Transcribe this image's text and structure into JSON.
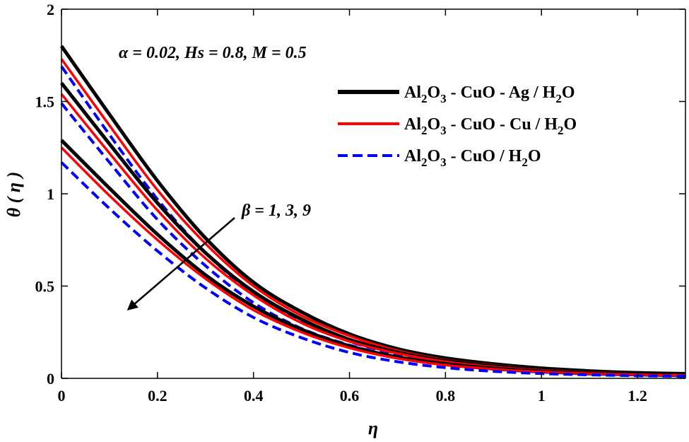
{
  "chart_data": {
    "type": "line",
    "xlabel": "η",
    "ylabel": "θ ( η )",
    "xlim": [
      0,
      1.3
    ],
    "ylim": [
      0,
      2
    ],
    "xticks": [
      0,
      0.2,
      0.4,
      0.6,
      0.8,
      1,
      1.2
    ],
    "yticks": [
      0,
      0.5,
      1,
      1.5,
      2
    ],
    "xtick_labels": [
      "0",
      "0.2",
      "0.4",
      "0.6",
      "0.8",
      "1",
      "1.2"
    ],
    "ytick_labels": [
      "0",
      "0.5",
      "1",
      "1.5",
      "2"
    ],
    "grid": false,
    "legend_position": "top-right",
    "annotation_params": "α = 0.02, Hs = 0.8, M = 0.5",
    "annotation_beta": "β = 1, 3, 9",
    "legend": [
      {
        "parts": [
          "Al",
          "2",
          "O",
          "3",
          " - CuO - Ag / H",
          "2",
          "O"
        ],
        "color": "#000000",
        "dash": "solid"
      },
      {
        "parts": [
          "Al",
          "2",
          "O",
          "3",
          " - CuO - Cu / H",
          "2",
          "O"
        ],
        "color": "#ff0000",
        "dash": "solid"
      },
      {
        "parts": [
          "Al",
          "2",
          "O",
          "3",
          " - CuO / H",
          "2",
          "O"
        ],
        "color": "#0000ff",
        "dash": "dashed"
      }
    ],
    "series": [
      {
        "fluid": "Al2O3-CuO-Ag/H2O",
        "beta": 1,
        "color": "#000000",
        "dash": "solid",
        "x": [
          0,
          0.1,
          0.2,
          0.3,
          0.4,
          0.5,
          0.6,
          0.7,
          0.8,
          0.9,
          1.0,
          1.1,
          1.2,
          1.3
        ],
        "y": [
          1.8,
          1.43,
          1.07,
          0.76,
          0.52,
          0.36,
          0.24,
          0.16,
          0.11,
          0.078,
          0.055,
          0.04,
          0.03,
          0.025
        ]
      },
      {
        "fluid": "Al2O3-CuO-Cu/H2O",
        "beta": 1,
        "color": "#ff0000",
        "dash": "solid",
        "x": [
          0,
          0.1,
          0.2,
          0.3,
          0.4,
          0.5,
          0.6,
          0.7,
          0.8,
          0.9,
          1.0,
          1.1,
          1.2,
          1.3
        ],
        "y": [
          1.73,
          1.37,
          1.02,
          0.73,
          0.5,
          0.34,
          0.23,
          0.15,
          0.1,
          0.072,
          0.05,
          0.036,
          0.027,
          0.022
        ]
      },
      {
        "fluid": "Al2O3-CuO/H2O",
        "beta": 1,
        "color": "#0000ff",
        "dash": "dashed",
        "x": [
          0,
          0.1,
          0.2,
          0.3,
          0.4,
          0.5,
          0.6,
          0.7,
          0.8,
          0.9,
          1.0,
          1.1,
          1.2,
          1.3
        ],
        "y": [
          1.69,
          1.32,
          0.97,
          0.68,
          0.46,
          0.31,
          0.2,
          0.13,
          0.085,
          0.057,
          0.039,
          0.028,
          0.021,
          0.017
        ]
      },
      {
        "fluid": "Al2O3-CuO-Ag/H2O",
        "beta": 3,
        "color": "#000000",
        "dash": "solid",
        "x": [
          0,
          0.1,
          0.2,
          0.3,
          0.4,
          0.5,
          0.6,
          0.7,
          0.8,
          0.9,
          1.0,
          1.1,
          1.2,
          1.3
        ],
        "y": [
          1.6,
          1.27,
          0.95,
          0.68,
          0.47,
          0.32,
          0.21,
          0.14,
          0.095,
          0.067,
          0.047,
          0.035,
          0.027,
          0.022
        ]
      },
      {
        "fluid": "Al2O3-CuO-Cu/H2O",
        "beta": 3,
        "color": "#ff0000",
        "dash": "solid",
        "x": [
          0,
          0.1,
          0.2,
          0.3,
          0.4,
          0.5,
          0.6,
          0.7,
          0.8,
          0.9,
          1.0,
          1.1,
          1.2,
          1.3
        ],
        "y": [
          1.54,
          1.22,
          0.91,
          0.65,
          0.45,
          0.3,
          0.2,
          0.135,
          0.09,
          0.062,
          0.044,
          0.032,
          0.025,
          0.02
        ]
      },
      {
        "fluid": "Al2O3-CuO/H2O",
        "beta": 3,
        "color": "#0000ff",
        "dash": "dashed",
        "x": [
          0,
          0.1,
          0.2,
          0.3,
          0.4,
          0.5,
          0.6,
          0.7,
          0.8,
          0.9,
          1.0,
          1.1,
          1.2,
          1.3
        ],
        "y": [
          1.49,
          1.17,
          0.86,
          0.61,
          0.41,
          0.27,
          0.18,
          0.115,
          0.075,
          0.05,
          0.034,
          0.024,
          0.018,
          0.014
        ]
      },
      {
        "fluid": "Al2O3-CuO-Ag/H2O",
        "beta": 9,
        "color": "#000000",
        "dash": "solid",
        "x": [
          0,
          0.1,
          0.2,
          0.3,
          0.4,
          0.5,
          0.6,
          0.7,
          0.8,
          0.9,
          1.0,
          1.1,
          1.2,
          1.3
        ],
        "y": [
          1.29,
          1.03,
          0.78,
          0.56,
          0.39,
          0.265,
          0.175,
          0.115,
          0.078,
          0.054,
          0.038,
          0.028,
          0.022,
          0.018
        ]
      },
      {
        "fluid": "Al2O3-CuO-Cu/H2O",
        "beta": 9,
        "color": "#ff0000",
        "dash": "solid",
        "x": [
          0,
          0.1,
          0.2,
          0.3,
          0.4,
          0.5,
          0.6,
          0.7,
          0.8,
          0.9,
          1.0,
          1.1,
          1.2,
          1.3
        ],
        "y": [
          1.25,
          0.99,
          0.75,
          0.54,
          0.37,
          0.25,
          0.165,
          0.108,
          0.072,
          0.05,
          0.035,
          0.026,
          0.02,
          0.016
        ]
      },
      {
        "fluid": "Al2O3-CuO/H2O",
        "beta": 9,
        "color": "#0000ff",
        "dash": "dashed",
        "x": [
          0,
          0.1,
          0.2,
          0.3,
          0.4,
          0.5,
          0.6,
          0.7,
          0.8,
          0.9,
          1.0,
          1.1,
          1.2,
          1.3
        ],
        "y": [
          1.17,
          0.92,
          0.69,
          0.49,
          0.33,
          0.22,
          0.14,
          0.09,
          0.058,
          0.038,
          0.026,
          0.019,
          0.014,
          0.011
        ]
      }
    ]
  }
}
